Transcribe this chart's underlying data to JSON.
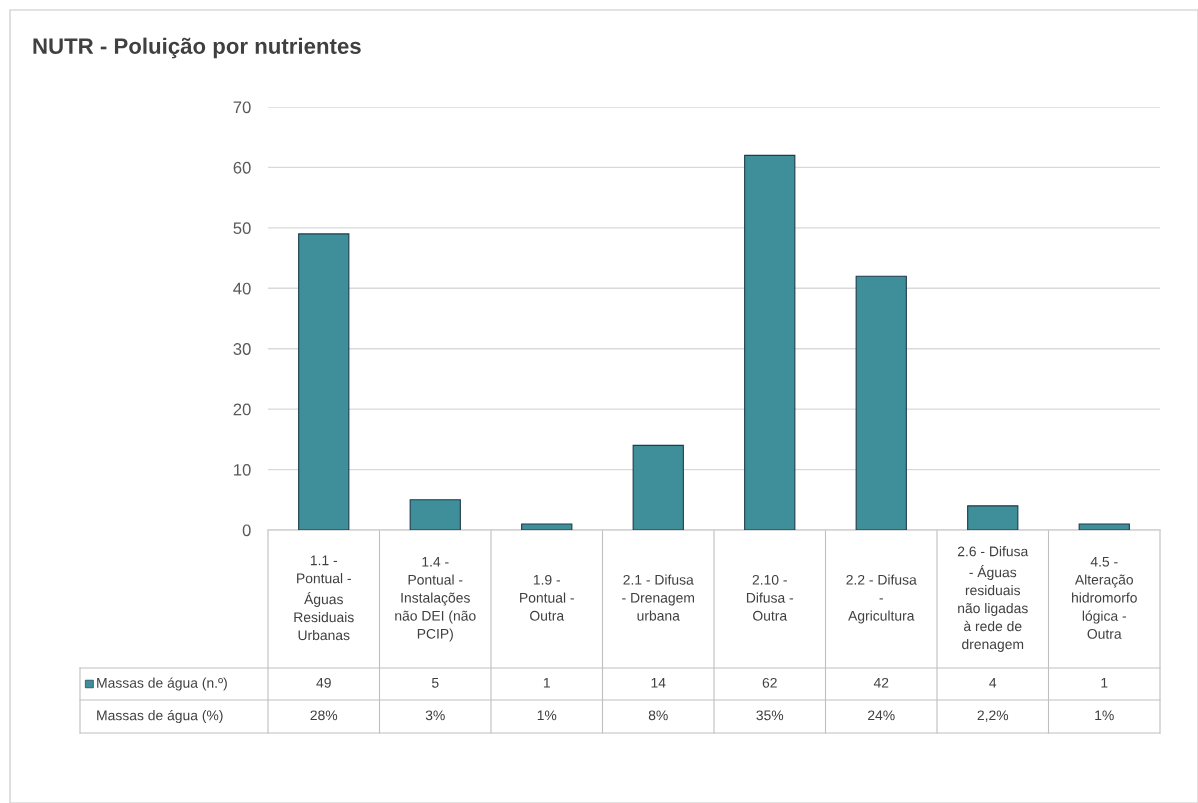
{
  "chart_data": {
    "type": "bar",
    "title": "NUTR - Poluição por nutrientes",
    "categories": [
      "1.1 - Pontual - Águas Residuais Urbanas",
      "1.4 - Pontual - Instalações não DEI (não PCIP)",
      "1.9 - Pontual - Outra",
      "2.1 - Difusa - Drenagem urbana",
      "2.10 - Difusa - Outra",
      "2.2 - Difusa - Agricultura",
      "2.6 - Difusa - Águas residuais não ligadas à rede de drenagem",
      "4.5 - Alteração hidromorfo lógica - Outra"
    ],
    "series": [
      {
        "name": "Massas de água (n.º)",
        "color": "#3f8f9a",
        "values": [
          49,
          5,
          1,
          14,
          62,
          42,
          4,
          1
        ]
      }
    ],
    "data_labels": true,
    "annotations": [
      "Massas de água (%)",
      "28%",
      "3%",
      "1%",
      "8%",
      "35%",
      "24%",
      "2,2%",
      "1%"
    ],
    "ylim": [
      0,
      70
    ],
    "yticks": [
      0,
      10,
      20,
      30,
      40,
      50,
      60,
      70
    ],
    "grid": "y"
  }
}
